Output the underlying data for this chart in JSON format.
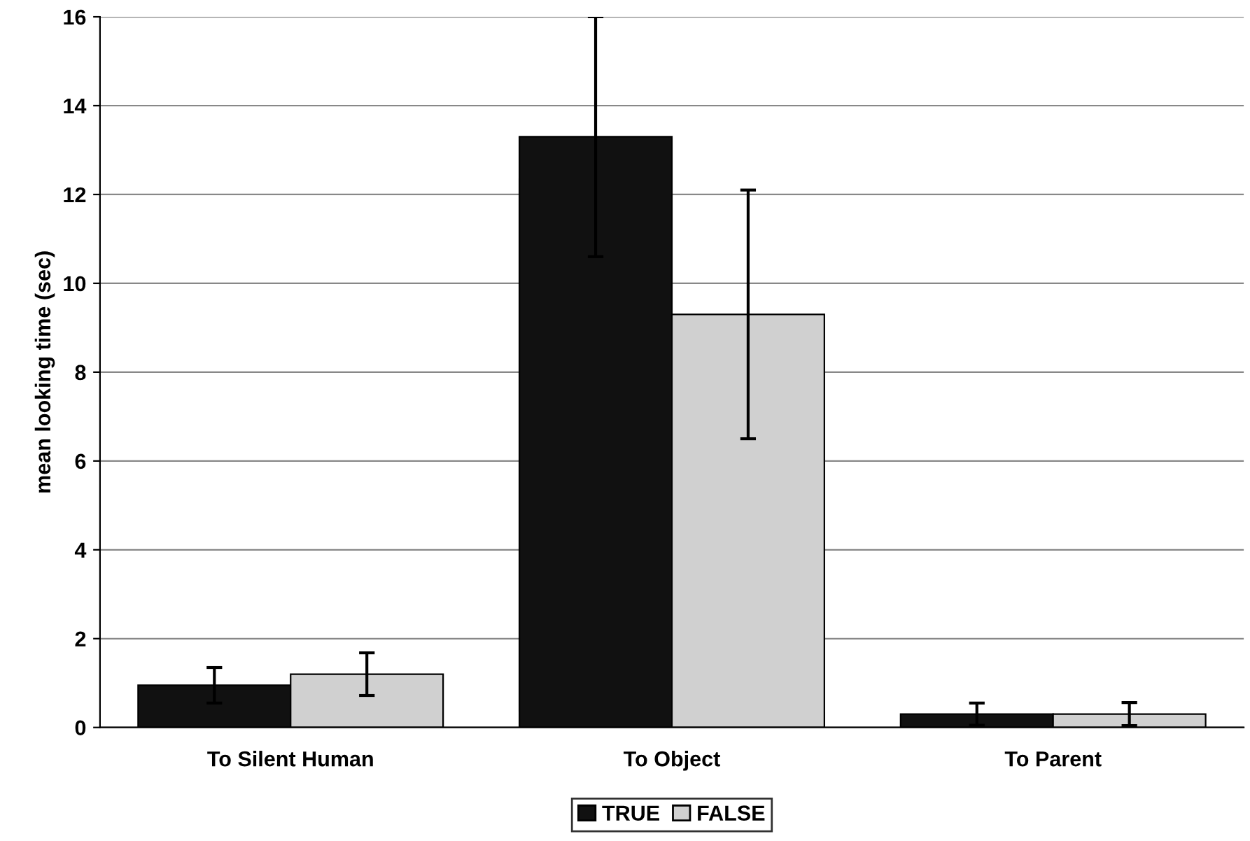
{
  "chart_data": {
    "type": "bar",
    "ylabel": "mean looking time (sec)",
    "categories": [
      "To Silent Human",
      "To Object",
      "To Parent"
    ],
    "series": [
      {
        "name": "TRUE",
        "color": "#111111",
        "values": [
          0.95,
          13.3,
          0.3
        ],
        "errors": [
          0.4,
          2.7,
          0.25
        ]
      },
      {
        "name": "FALSE",
        "color": "#d0d0d0",
        "values": [
          1.2,
          9.3,
          0.3
        ],
        "errors": [
          0.48,
          2.8,
          0.26
        ]
      }
    ],
    "ylim": [
      0,
      16
    ],
    "yticks": [
      0,
      2,
      4,
      6,
      8,
      10,
      12,
      14,
      16
    ],
    "grid": "y",
    "legend": "bottom"
  }
}
